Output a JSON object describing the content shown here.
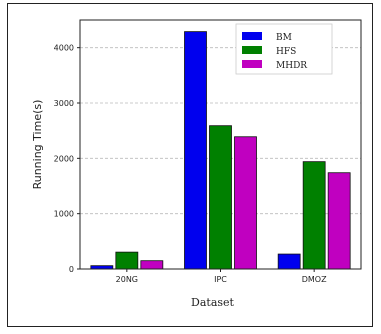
{
  "chart_data": {
    "type": "bar",
    "xlabel": "Dataset",
    "ylabel": "Running Time(s)",
    "categories": [
      "20NG",
      "IPC",
      "DMOZ"
    ],
    "ylim": [
      0,
      4500
    ],
    "yticks": [
      0,
      1000,
      2000,
      3000,
      4000
    ],
    "grid": true,
    "legend_position": "top-right",
    "series": [
      {
        "name": "BM",
        "color": "#0000ee",
        "values": [
          60,
          4290,
          270
        ]
      },
      {
        "name": "HFS",
        "color": "#008000",
        "values": [
          305,
          2590,
          1940
        ]
      },
      {
        "name": "MHDR",
        "color": "#c000c0",
        "values": [
          150,
          2390,
          1740
        ]
      }
    ]
  }
}
